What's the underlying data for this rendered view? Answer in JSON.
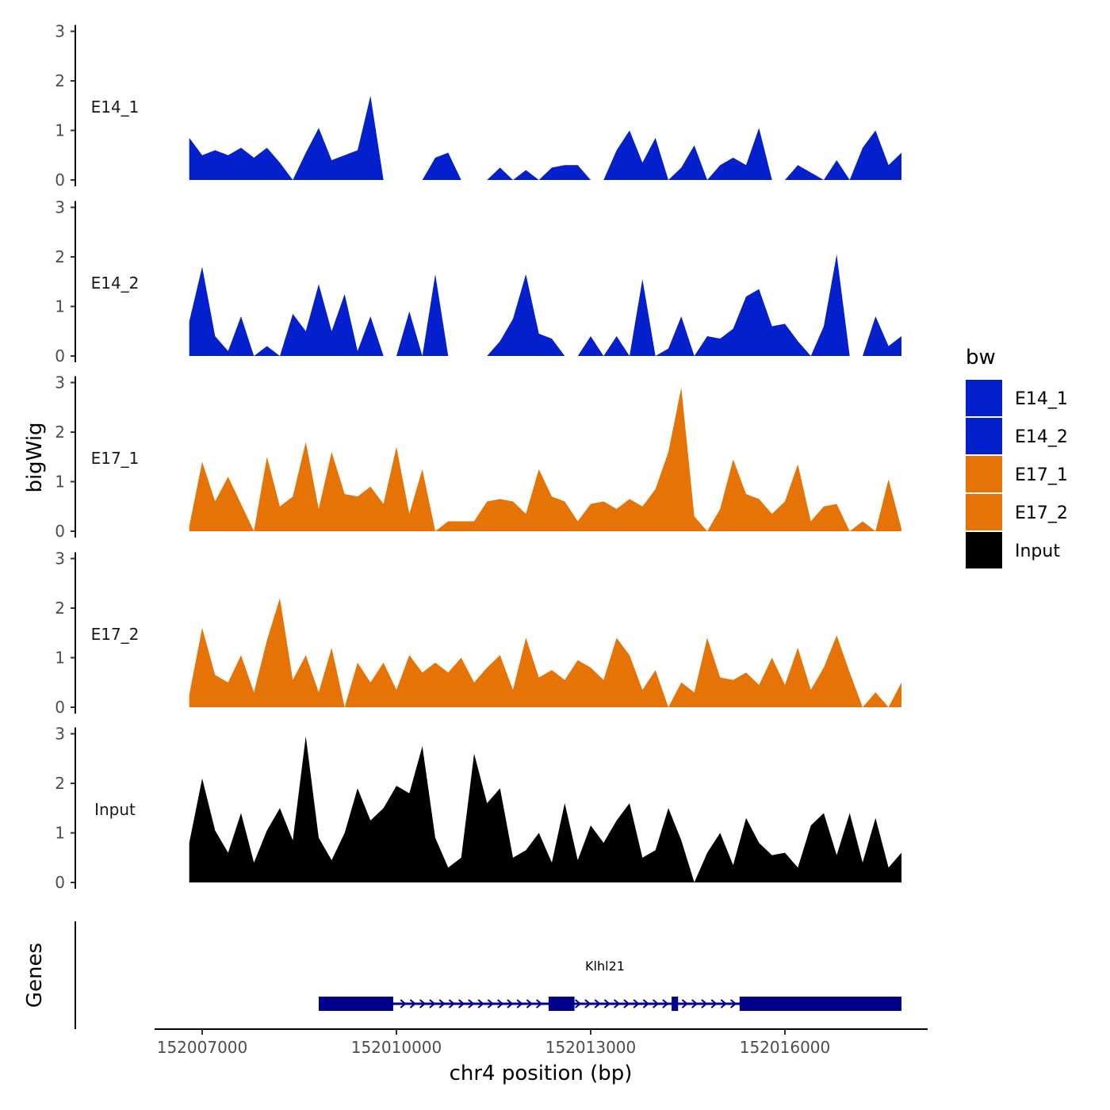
{
  "chart_data": {
    "type": "area",
    "layout": "stacked-tracks",
    "x_axis": {
      "label": "chr4 position (bp)",
      "chrom": "chr4",
      "range": [
        152006500,
        152018500
      ],
      "ticks": [
        152007000,
        152010000,
        152013000,
        152016000
      ],
      "tick_labels": [
        "152007000",
        "152010000",
        "152013000",
        "152016000"
      ]
    },
    "y_axis": {
      "label": "bigWig",
      "range": [
        0,
        3
      ],
      "ticks": [
        0,
        1,
        2,
        3
      ],
      "tick_labels": [
        "0",
        "1",
        "2",
        "3"
      ]
    },
    "legend": {
      "title": "bw",
      "placement": "right",
      "entries": [
        {
          "name": "E14_1",
          "color": "#0320cc"
        },
        {
          "name": "E14_2",
          "color": "#0320cc"
        },
        {
          "name": "E17_1",
          "color": "#e57305"
        },
        {
          "name": "E17_2",
          "color": "#e57305"
        },
        {
          "name": "Input",
          "color": "#000000"
        }
      ]
    },
    "x_positions_bp": [
      152006800,
      152007000,
      152007200,
      152007400,
      152007600,
      152007800,
      152008000,
      152008200,
      152008400,
      152008600,
      152008800,
      152009000,
      152009200,
      152009400,
      152009600,
      152009800,
      152010000,
      152010200,
      152010400,
      152010600,
      152010800,
      152011000,
      152011200,
      152011400,
      152011600,
      152011800,
      152012000,
      152012200,
      152012400,
      152012600,
      152012800,
      152013000,
      152013200,
      152013400,
      152013600,
      152013800,
      152014000,
      152014200,
      152014400,
      152014600,
      152014800,
      152015000,
      152015200,
      152015400,
      152015600,
      152015800,
      152016000,
      152016200,
      152016400,
      152016600,
      152016800,
      152017000,
      152017200,
      152017400,
      152017600,
      152017800
    ],
    "tracks": [
      {
        "name": "E14_1",
        "color": "#0320cc",
        "values": [
          0.85,
          0.5,
          0.6,
          0.5,
          0.65,
          0.45,
          0.65,
          0.35,
          0.0,
          0.55,
          1.05,
          0.4,
          0.5,
          0.6,
          1.7,
          0.0,
          0.0,
          0.0,
          0.0,
          0.45,
          0.55,
          0.0,
          0.0,
          0.0,
          0.25,
          0.0,
          0.2,
          0.0,
          0.25,
          0.3,
          0.3,
          0.0,
          0.0,
          0.6,
          1.0,
          0.35,
          0.85,
          0.0,
          0.25,
          0.7,
          0.0,
          0.3,
          0.45,
          0.3,
          1.05,
          0.0,
          0.0,
          0.3,
          0.15,
          0.0,
          0.4,
          0.0,
          0.65,
          1.0,
          0.3,
          0.55
        ]
      },
      {
        "name": "E14_2",
        "color": "#0320cc",
        "values": [
          0.7,
          1.8,
          0.4,
          0.1,
          0.8,
          0.0,
          0.2,
          0.0,
          0.85,
          0.5,
          1.45,
          0.5,
          1.25,
          0.1,
          0.8,
          0.0,
          0.0,
          0.9,
          0.0,
          1.65,
          0.0,
          0.0,
          0.0,
          0.0,
          0.3,
          0.75,
          1.65,
          0.45,
          0.35,
          0.0,
          0.0,
          0.4,
          0.0,
          0.4,
          0.0,
          1.55,
          0.0,
          0.15,
          0.8,
          0.0,
          0.4,
          0.35,
          0.55,
          1.2,
          1.35,
          0.6,
          0.65,
          0.3,
          0.0,
          0.6,
          2.05,
          0.0,
          0.0,
          0.8,
          0.2,
          0.4
        ]
      },
      {
        "name": "E17_1",
        "color": "#e57305",
        "values": [
          0.1,
          1.4,
          0.6,
          1.1,
          0.55,
          0.0,
          1.5,
          0.5,
          0.7,
          1.8,
          0.45,
          1.6,
          0.75,
          0.7,
          0.9,
          0.55,
          1.7,
          0.35,
          1.25,
          0.0,
          0.2,
          0.2,
          0.2,
          0.6,
          0.65,
          0.6,
          0.35,
          1.25,
          0.7,
          0.6,
          0.2,
          0.55,
          0.6,
          0.45,
          0.65,
          0.5,
          0.85,
          1.6,
          2.9,
          0.3,
          0.0,
          0.45,
          1.45,
          0.75,
          0.65,
          0.35,
          0.6,
          1.35,
          0.2,
          0.5,
          0.55,
          0.0,
          0.2,
          0.0,
          1.05,
          0.05
        ]
      },
      {
        "name": "E17_2",
        "color": "#e57305",
        "values": [
          0.25,
          1.6,
          0.65,
          0.5,
          1.05,
          0.3,
          1.35,
          2.2,
          0.55,
          1.05,
          0.3,
          1.2,
          0.0,
          0.9,
          0.5,
          0.9,
          0.35,
          1.05,
          0.7,
          0.9,
          0.7,
          1.0,
          0.5,
          0.8,
          1.05,
          0.35,
          1.4,
          0.6,
          0.75,
          0.55,
          0.95,
          0.8,
          0.55,
          1.4,
          1.05,
          0.35,
          0.75,
          0.0,
          0.5,
          0.3,
          1.4,
          0.6,
          0.55,
          0.7,
          0.45,
          1.0,
          0.45,
          1.2,
          0.35,
          0.8,
          1.45,
          0.7,
          0.0,
          0.3,
          0.0,
          0.5
        ]
      },
      {
        "name": "Input",
        "color": "#000000",
        "values": [
          0.8,
          2.1,
          1.05,
          0.6,
          1.4,
          0.4,
          1.05,
          1.5,
          0.85,
          2.95,
          0.9,
          0.45,
          1.0,
          1.9,
          1.25,
          1.5,
          1.95,
          1.8,
          2.75,
          0.9,
          0.3,
          0.5,
          2.6,
          1.6,
          1.9,
          0.5,
          0.65,
          1.0,
          0.4,
          1.6,
          0.45,
          1.15,
          0.8,
          1.25,
          1.6,
          0.5,
          0.65,
          1.5,
          0.85,
          0.0,
          0.6,
          1.0,
          0.35,
          1.3,
          0.8,
          0.55,
          0.6,
          0.3,
          1.15,
          1.4,
          0.55,
          1.4,
          0.4,
          1.3,
          0.3,
          0.6
        ]
      }
    ],
    "genes_track": {
      "label": "Genes",
      "gene_name": "Klhl21",
      "strand": "+",
      "start": 152008800,
      "end": 152017800,
      "exons": [
        [
          152008800,
          152009950
        ],
        [
          152012350,
          152012750
        ],
        [
          152014250,
          152014350
        ],
        [
          152015300,
          152017800
        ]
      ]
    }
  }
}
